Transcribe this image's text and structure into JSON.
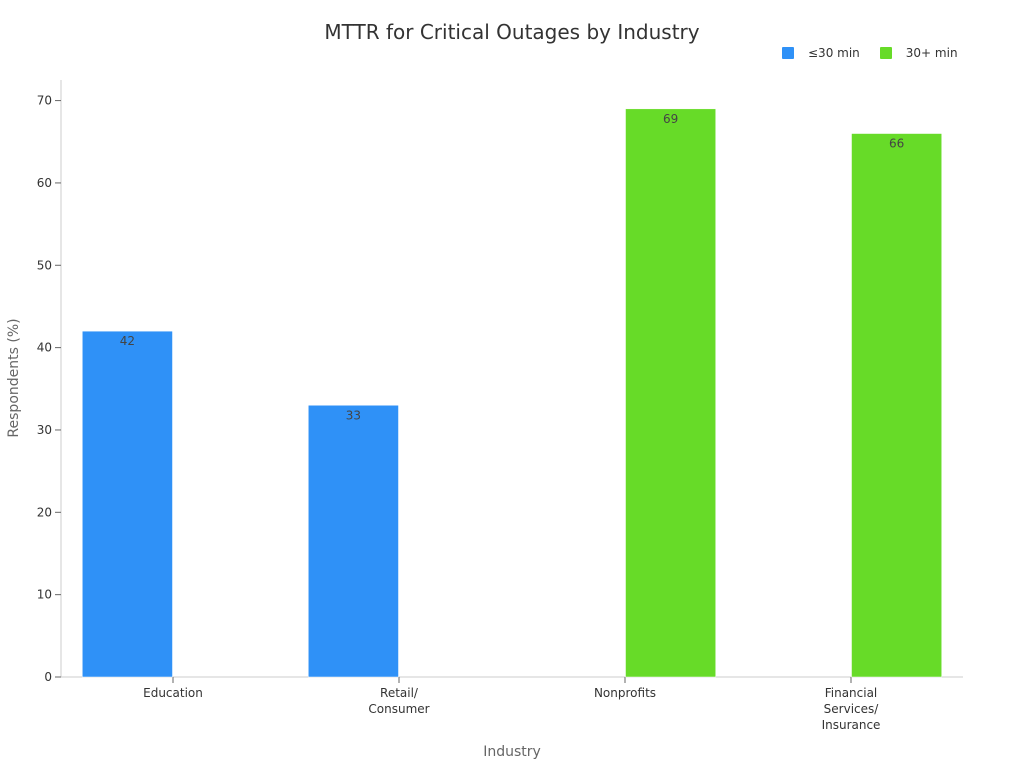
{
  "chart_data": {
    "type": "bar",
    "title": "MTTR for Critical Outages by Industry",
    "xlabel": "Industry",
    "ylabel": "Respondents (%)",
    "ylim": [
      0,
      72.5
    ],
    "yticks": [
      0,
      10,
      20,
      30,
      40,
      50,
      60,
      70
    ],
    "categories": [
      [
        "Education"
      ],
      [
        "Retail/",
        "Consumer"
      ],
      [
        "Nonprofits"
      ],
      [
        "Financial",
        "Services/",
        "Insurance"
      ]
    ],
    "series": [
      {
        "name": "≤30 min",
        "color": "#2f91f7",
        "values": [
          42,
          33,
          null,
          null
        ]
      },
      {
        "name": "30+ min",
        "color": "#67db28",
        "values": [
          null,
          null,
          69,
          66
        ]
      }
    ],
    "legend_position": "top-right",
    "grid": false
  }
}
